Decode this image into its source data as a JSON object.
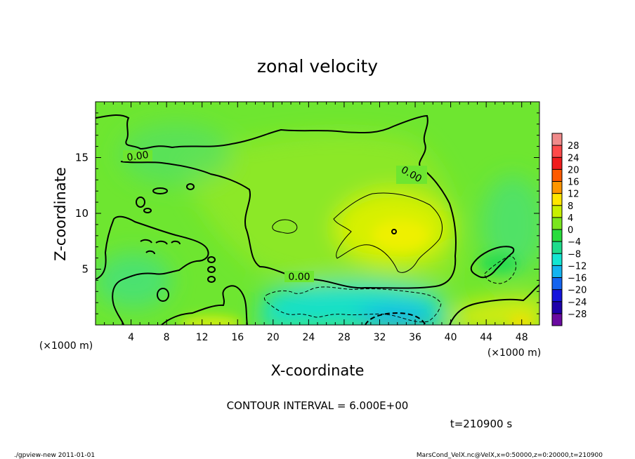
{
  "chart_data": {
    "type": "heatmap",
    "title": "zonal velocity",
    "xlabel": "X-coordinate",
    "ylabel": "Z-coordinate",
    "x_unit_label": "(×1000 m)",
    "y_unit_label": "(×1000 m)",
    "xlim": [
      0,
      50
    ],
    "ylim": [
      0,
      20
    ],
    "x_ticks": [
      4,
      8,
      12,
      16,
      20,
      24,
      28,
      32,
      36,
      40,
      44,
      48
    ],
    "y_ticks": [
      5,
      10,
      15
    ],
    "colorbar": {
      "labels": [
        "28",
        "24",
        "20",
        "16",
        "12",
        "8",
        "4",
        "0",
        "−4",
        "−8",
        "−12",
        "−16",
        "−20",
        "−24",
        "−28"
      ],
      "bands": [
        {
          "lo": 28,
          "hi": 32,
          "color": "#f08a8a"
        },
        {
          "lo": 24,
          "hi": 28,
          "color": "#ff4a4a"
        },
        {
          "lo": 20,
          "hi": 24,
          "color": "#f01c1c"
        },
        {
          "lo": 16,
          "hi": 20,
          "color": "#ff5a00"
        },
        {
          "lo": 12,
          "hi": 16,
          "color": "#ff9600"
        },
        {
          "lo": 8,
          "hi": 12,
          "color": "#ffe600"
        },
        {
          "lo": 4,
          "hi": 8,
          "color": "#c8f000"
        },
        {
          "lo": 0,
          "hi": 4,
          "color": "#7ae61e"
        },
        {
          "lo": -4,
          "hi": 0,
          "color": "#28dc3c"
        },
        {
          "lo": -8,
          "hi": -4,
          "color": "#1edc8c"
        },
        {
          "lo": -12,
          "hi": -8,
          "color": "#14e6d2"
        },
        {
          "lo": -16,
          "hi": -12,
          "color": "#14b4f0"
        },
        {
          "lo": -20,
          "hi": -16,
          "color": "#1464f0"
        },
        {
          "lo": -24,
          "hi": -20,
          "color": "#1414dc"
        },
        {
          "lo": -28,
          "hi": -24,
          "color": "#1e00aa"
        },
        {
          "lo": -32,
          "hi": -28,
          "color": "#6a0aa0"
        }
      ]
    },
    "contour_labels": [
      "0.00",
      "0.00",
      "0.00"
    ],
    "field_regions": [
      {
        "name": "background",
        "value": 2,
        "color": "#6ee630"
      },
      {
        "name": "positive-core",
        "value": 9,
        "color": "#d8f000",
        "x_range": [
          27,
          39
        ],
        "z_range": [
          6,
          12
        ]
      },
      {
        "name": "negative-core",
        "value": -10,
        "color": "#16e0c8",
        "x_range": [
          19,
          38
        ],
        "z_range": [
          0,
          3
        ]
      },
      {
        "name": "strong-negative-core",
        "value": -14,
        "color": "#12b4ea",
        "x_range": [
          30,
          37
        ],
        "z_range": [
          0,
          1.3
        ]
      },
      {
        "name": "right-bottom-positive",
        "value": 8,
        "color": "#d8ec10",
        "x_range": [
          40,
          50
        ],
        "z_range": [
          0,
          2
        ]
      }
    ],
    "contour_interval": "CONTOUR INTERVAL = 6.000E+00",
    "time_label": "t=210900 s"
  },
  "footer": {
    "left": "./gpview-new 2011-01-01",
    "right": "MarsCond_VelX.nc@VelX,x=0:50000,z=0:20000,t=210900"
  }
}
